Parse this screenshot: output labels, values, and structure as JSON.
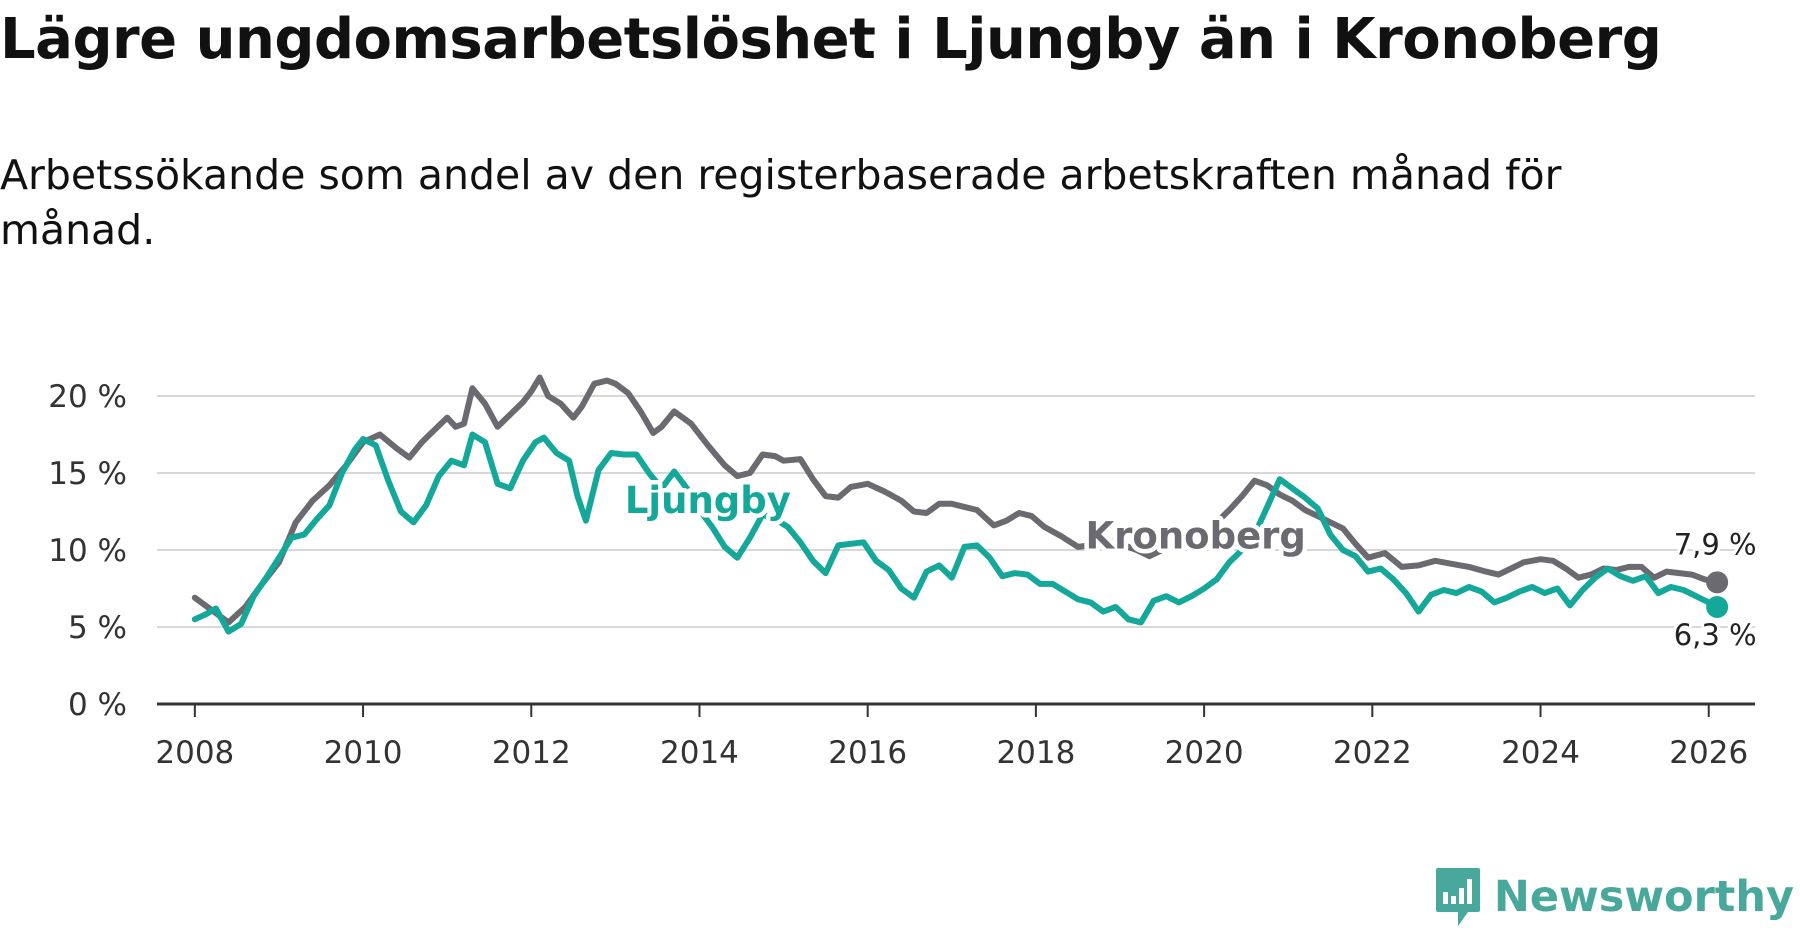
{
  "title": "Lägre ungdomsarbetslöshet i Ljungby än i Kronoberg",
  "subtitle": "Arbetssökande som andel av den registerbaserade arbetskraften månad för månad.",
  "brand": "Newsworthy",
  "chart_data": {
    "type": "line",
    "title": "Lägre ungdomsarbetslöshet i Ljungby än i Kronoberg",
    "subtitle": "Arbetssökande som andel av den registerbaserade arbetskraften månad för månad.",
    "xlabel": "",
    "ylabel": "",
    "xlim": [
      2007.55,
      2026.55
    ],
    "ylim": [
      0,
      20
    ],
    "yticks": [
      0,
      5,
      10,
      15,
      20
    ],
    "ytick_labels": [
      "0 %",
      "5 %",
      "10 %",
      "15 %",
      "20 %"
    ],
    "xticks": [
      2008,
      2010,
      2012,
      2014,
      2016,
      2018,
      2020,
      2022,
      2024,
      2026
    ],
    "xtick_labels": [
      "2008",
      "2010",
      "2012",
      "2014",
      "2016",
      "2018",
      "2020",
      "2022",
      "2024",
      "2026"
    ],
    "grid": "horizontal",
    "series": [
      {
        "name": "Kronoberg",
        "color": "#6b6a70",
        "label": "Kronoberg",
        "end_label": "7,9 %",
        "end_value": 7.9,
        "points": [
          [
            2008.0,
            6.9
          ],
          [
            2008.2,
            6.1
          ],
          [
            2008.4,
            5.3
          ],
          [
            2008.6,
            6.3
          ],
          [
            2008.8,
            7.8
          ],
          [
            2009.0,
            9.2
          ],
          [
            2009.2,
            11.8
          ],
          [
            2009.4,
            13.2
          ],
          [
            2009.6,
            14.2
          ],
          [
            2009.8,
            15.5
          ],
          [
            2010.0,
            17.0
          ],
          [
            2010.2,
            17.5
          ],
          [
            2010.4,
            16.6
          ],
          [
            2010.55,
            16.0
          ],
          [
            2010.7,
            17.0
          ],
          [
            2010.85,
            17.8
          ],
          [
            2011.0,
            18.6
          ],
          [
            2011.1,
            18.0
          ],
          [
            2011.2,
            18.2
          ],
          [
            2011.3,
            20.5
          ],
          [
            2011.45,
            19.5
          ],
          [
            2011.6,
            18.0
          ],
          [
            2011.75,
            18.8
          ],
          [
            2011.9,
            19.6
          ],
          [
            2012.0,
            20.3
          ],
          [
            2012.1,
            21.2
          ],
          [
            2012.2,
            20.0
          ],
          [
            2012.35,
            19.5
          ],
          [
            2012.5,
            18.6
          ],
          [
            2012.6,
            19.3
          ],
          [
            2012.75,
            20.8
          ],
          [
            2012.9,
            21.0
          ],
          [
            2013.0,
            20.8
          ],
          [
            2013.15,
            20.2
          ],
          [
            2013.3,
            19.0
          ],
          [
            2013.45,
            17.6
          ],
          [
            2013.55,
            18.0
          ],
          [
            2013.7,
            19.0
          ],
          [
            2013.9,
            18.2
          ],
          [
            2014.1,
            16.8
          ],
          [
            2014.3,
            15.5
          ],
          [
            2014.45,
            14.8
          ],
          [
            2014.6,
            15.0
          ],
          [
            2014.75,
            16.2
          ],
          [
            2014.9,
            16.1
          ],
          [
            2015.0,
            15.8
          ],
          [
            2015.2,
            15.9
          ],
          [
            2015.35,
            14.6
          ],
          [
            2015.5,
            13.5
          ],
          [
            2015.65,
            13.4
          ],
          [
            2015.8,
            14.1
          ],
          [
            2016.0,
            14.3
          ],
          [
            2016.2,
            13.8
          ],
          [
            2016.4,
            13.2
          ],
          [
            2016.55,
            12.5
          ],
          [
            2016.7,
            12.4
          ],
          [
            2016.85,
            13.0
          ],
          [
            2017.0,
            13.0
          ],
          [
            2017.15,
            12.8
          ],
          [
            2017.3,
            12.6
          ],
          [
            2017.5,
            11.6
          ],
          [
            2017.65,
            11.9
          ],
          [
            2017.8,
            12.4
          ],
          [
            2017.95,
            12.2
          ],
          [
            2018.1,
            11.5
          ],
          [
            2018.3,
            10.9
          ],
          [
            2018.5,
            10.2
          ],
          [
            2018.65,
            10.3
          ],
          [
            2018.8,
            10.7
          ],
          [
            2019.0,
            10.4
          ],
          [
            2019.2,
            10.0
          ],
          [
            2019.35,
            9.6
          ],
          [
            2019.5,
            10.0
          ],
          [
            2019.65,
            10.2
          ],
          [
            2019.8,
            10.9
          ],
          [
            2020.0,
            10.6
          ],
          [
            2020.15,
            11.8
          ],
          [
            2020.3,
            12.6
          ],
          [
            2020.45,
            13.5
          ],
          [
            2020.6,
            14.5
          ],
          [
            2020.75,
            14.2
          ],
          [
            2020.9,
            13.6
          ],
          [
            2021.05,
            13.2
          ],
          [
            2021.2,
            12.6
          ],
          [
            2021.35,
            12.2
          ],
          [
            2021.5,
            11.8
          ],
          [
            2021.65,
            11.4
          ],
          [
            2021.8,
            10.4
          ],
          [
            2021.95,
            9.5
          ],
          [
            2022.15,
            9.8
          ],
          [
            2022.35,
            8.9
          ],
          [
            2022.55,
            9.0
          ],
          [
            2022.75,
            9.3
          ],
          [
            2022.95,
            9.1
          ],
          [
            2023.15,
            8.9
          ],
          [
            2023.35,
            8.6
          ],
          [
            2023.5,
            8.4
          ],
          [
            2023.65,
            8.8
          ],
          [
            2023.8,
            9.2
          ],
          [
            2024.0,
            9.4
          ],
          [
            2024.15,
            9.3
          ],
          [
            2024.3,
            8.8
          ],
          [
            2024.45,
            8.2
          ],
          [
            2024.6,
            8.4
          ],
          [
            2024.75,
            8.8
          ],
          [
            2024.9,
            8.7
          ],
          [
            2025.05,
            8.9
          ],
          [
            2025.2,
            8.9
          ],
          [
            2025.35,
            8.2
          ],
          [
            2025.5,
            8.6
          ],
          [
            2025.65,
            8.5
          ],
          [
            2025.8,
            8.4
          ],
          [
            2025.95,
            8.1
          ],
          [
            2026.1,
            7.9
          ]
        ]
      },
      {
        "name": "Ljungby",
        "color": "#14a89a",
        "label": "Ljungby",
        "end_label": "6,3 %",
        "end_value": 6.3,
        "points": [
          [
            2008.0,
            5.5
          ],
          [
            2008.12,
            5.8
          ],
          [
            2008.25,
            6.2
          ],
          [
            2008.4,
            4.7
          ],
          [
            2008.55,
            5.2
          ],
          [
            2008.7,
            7.0
          ],
          [
            2008.85,
            8.2
          ],
          [
            2009.0,
            9.5
          ],
          [
            2009.15,
            10.8
          ],
          [
            2009.3,
            11.0
          ],
          [
            2009.45,
            12.0
          ],
          [
            2009.6,
            12.9
          ],
          [
            2009.75,
            15.0
          ],
          [
            2009.9,
            16.5
          ],
          [
            2010.0,
            17.2
          ],
          [
            2010.15,
            16.8
          ],
          [
            2010.3,
            14.5
          ],
          [
            2010.45,
            12.5
          ],
          [
            2010.6,
            11.8
          ],
          [
            2010.75,
            12.9
          ],
          [
            2010.9,
            14.8
          ],
          [
            2011.05,
            15.8
          ],
          [
            2011.2,
            15.5
          ],
          [
            2011.3,
            17.5
          ],
          [
            2011.45,
            17.0
          ],
          [
            2011.6,
            14.3
          ],
          [
            2011.75,
            14.0
          ],
          [
            2011.9,
            15.8
          ],
          [
            2012.05,
            17.0
          ],
          [
            2012.15,
            17.3
          ],
          [
            2012.3,
            16.3
          ],
          [
            2012.45,
            15.8
          ],
          [
            2012.55,
            13.5
          ],
          [
            2012.65,
            11.9
          ],
          [
            2012.8,
            15.2
          ],
          [
            2012.95,
            16.3
          ],
          [
            2013.1,
            16.2
          ],
          [
            2013.25,
            16.2
          ],
          [
            2013.4,
            15.0
          ],
          [
            2013.55,
            14.0
          ],
          [
            2013.7,
            15.1
          ],
          [
            2013.85,
            14.0
          ],
          [
            2014.0,
            12.6
          ],
          [
            2014.15,
            11.5
          ],
          [
            2014.3,
            10.2
          ],
          [
            2014.45,
            9.5
          ],
          [
            2014.6,
            10.8
          ],
          [
            2014.75,
            12.3
          ],
          [
            2014.9,
            12.0
          ],
          [
            2015.05,
            11.5
          ],
          [
            2015.2,
            10.5
          ],
          [
            2015.35,
            9.3
          ],
          [
            2015.5,
            8.5
          ],
          [
            2015.65,
            10.3
          ],
          [
            2015.8,
            10.4
          ],
          [
            2015.95,
            10.5
          ],
          [
            2016.1,
            9.3
          ],
          [
            2016.25,
            8.7
          ],
          [
            2016.4,
            7.5
          ],
          [
            2016.55,
            6.9
          ],
          [
            2016.7,
            8.6
          ],
          [
            2016.85,
            9.0
          ],
          [
            2017.0,
            8.2
          ],
          [
            2017.15,
            10.2
          ],
          [
            2017.3,
            10.3
          ],
          [
            2017.45,
            9.5
          ],
          [
            2017.6,
            8.3
          ],
          [
            2017.75,
            8.5
          ],
          [
            2017.9,
            8.4
          ],
          [
            2018.05,
            7.8
          ],
          [
            2018.2,
            7.8
          ],
          [
            2018.35,
            7.3
          ],
          [
            2018.5,
            6.8
          ],
          [
            2018.65,
            6.6
          ],
          [
            2018.8,
            6.0
          ],
          [
            2018.95,
            6.3
          ],
          [
            2019.1,
            5.5
          ],
          [
            2019.25,
            5.3
          ],
          [
            2019.4,
            6.7
          ],
          [
            2019.55,
            7.0
          ],
          [
            2019.7,
            6.6
          ],
          [
            2019.85,
            7.0
          ],
          [
            2020.0,
            7.5
          ],
          [
            2020.15,
            8.1
          ],
          [
            2020.3,
            9.2
          ],
          [
            2020.45,
            10.0
          ],
          [
            2020.6,
            11.0
          ],
          [
            2020.75,
            12.8
          ],
          [
            2020.9,
            14.6
          ],
          [
            2021.05,
            14.0
          ],
          [
            2021.2,
            13.4
          ],
          [
            2021.35,
            12.7
          ],
          [
            2021.5,
            11.0
          ],
          [
            2021.65,
            10.0
          ],
          [
            2021.8,
            9.6
          ],
          [
            2021.95,
            8.6
          ],
          [
            2022.1,
            8.8
          ],
          [
            2022.25,
            8.1
          ],
          [
            2022.4,
            7.2
          ],
          [
            2022.55,
            6.0
          ],
          [
            2022.7,
            7.1
          ],
          [
            2022.85,
            7.4
          ],
          [
            2023.0,
            7.2
          ],
          [
            2023.15,
            7.6
          ],
          [
            2023.3,
            7.3
          ],
          [
            2023.45,
            6.6
          ],
          [
            2023.6,
            6.9
          ],
          [
            2023.75,
            7.3
          ],
          [
            2023.9,
            7.6
          ],
          [
            2024.05,
            7.2
          ],
          [
            2024.2,
            7.5
          ],
          [
            2024.35,
            6.4
          ],
          [
            2024.5,
            7.4
          ],
          [
            2024.65,
            8.2
          ],
          [
            2024.8,
            8.8
          ],
          [
            2024.95,
            8.3
          ],
          [
            2025.1,
            8.0
          ],
          [
            2025.25,
            8.3
          ],
          [
            2025.4,
            7.2
          ],
          [
            2025.55,
            7.6
          ],
          [
            2025.7,
            7.4
          ],
          [
            2025.85,
            7.0
          ],
          [
            2026.0,
            6.6
          ],
          [
            2026.1,
            6.3
          ]
        ]
      }
    ]
  }
}
